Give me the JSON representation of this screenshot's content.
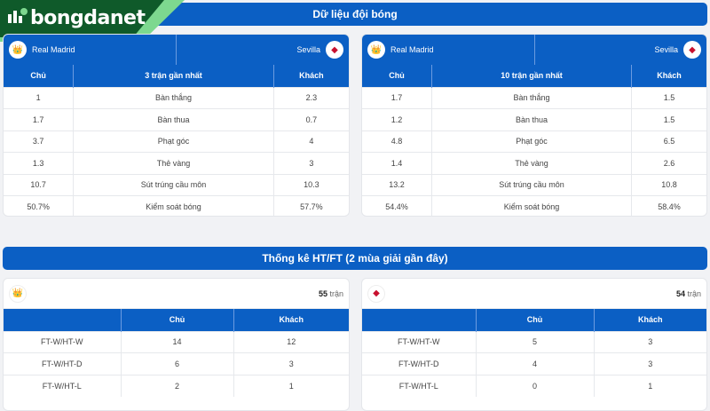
{
  "brand": {
    "name": "bongdanet",
    "colors": {
      "primary": "#0b5fc4",
      "logo_green": "#0f5a2a"
    }
  },
  "section1": {
    "title": "Dữ liệu đội bóng",
    "left": {
      "home": "Real Madrid",
      "away": "Sevilla",
      "headers": [
        "Chủ",
        "3 trận gần nhất",
        "Khách"
      ],
      "rows": [
        [
          "1",
          "Bàn thắng",
          "2.3"
        ],
        [
          "1.7",
          "Bàn thua",
          "0.7"
        ],
        [
          "3.7",
          "Phạt góc",
          "4"
        ],
        [
          "1.3",
          "Thẻ vàng",
          "3"
        ],
        [
          "10.7",
          "Sút trúng cầu môn",
          "10.3"
        ],
        [
          "50.7%",
          "Kiểm soát bóng",
          "57.7%"
        ]
      ]
    },
    "right": {
      "home": "Real Madrid",
      "away": "Sevilla",
      "headers": [
        "Chủ",
        "10 trận gần nhất",
        "Khách"
      ],
      "rows": [
        [
          "1.7",
          "Bàn thắng",
          "1.5"
        ],
        [
          "1.2",
          "Bàn thua",
          "1.5"
        ],
        [
          "4.8",
          "Phạt góc",
          "6.5"
        ],
        [
          "1.4",
          "Thẻ vàng",
          "2.6"
        ],
        [
          "13.2",
          "Sút trúng cầu môn",
          "10.8"
        ],
        [
          "54.4%",
          "Kiểm soát bóng",
          "58.4%"
        ]
      ]
    }
  },
  "section2": {
    "title": "Thống kê HT/FT (2 mùa giải gần đây)",
    "left": {
      "count": "55",
      "unit": "trận",
      "headers": [
        "",
        "Chủ",
        "Khách"
      ],
      "rows": [
        [
          "FT-W/HT-W",
          "14",
          "12"
        ],
        [
          "FT-W/HT-D",
          "6",
          "3"
        ],
        [
          "FT-W/HT-L",
          "2",
          "1"
        ]
      ]
    },
    "right": {
      "count": "54",
      "unit": "trận",
      "headers": [
        "",
        "Chủ",
        "Khách"
      ],
      "rows": [
        [
          "FT-W/HT-W",
          "5",
          "3"
        ],
        [
          "FT-W/HT-D",
          "4",
          "3"
        ],
        [
          "FT-W/HT-L",
          "0",
          "1"
        ]
      ]
    }
  }
}
